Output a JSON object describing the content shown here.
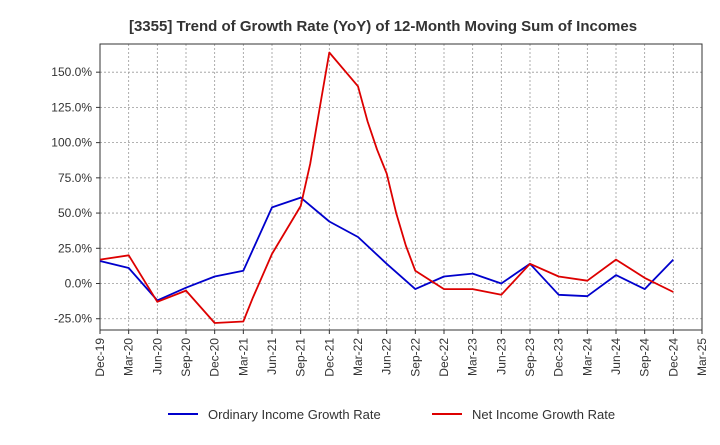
{
  "chart_data": {
    "type": "line",
    "title": "[3355]  Trend of Growth Rate (YoY) of 12-Month Moving Sum of Incomes",
    "xlabel": "",
    "ylabel": "",
    "y_unit": "%",
    "ylim": [
      -33,
      170
    ],
    "y_ticks": [
      -25,
      0,
      25,
      50,
      75,
      100,
      125,
      150
    ],
    "y_tick_labels": [
      "-25.0%",
      "0.0%",
      "25.0%",
      "50.0%",
      "75.0%",
      "100.0%",
      "125.0%",
      "150.0%"
    ],
    "x_tick_labels": [
      "Dec-19",
      "Mar-20",
      "Jun-20",
      "Sep-20",
      "Dec-20",
      "Mar-21",
      "Jun-21",
      "Sep-21",
      "Dec-21",
      "Mar-22",
      "Jun-22",
      "Sep-22",
      "Dec-22",
      "Mar-23",
      "Jun-23",
      "Sep-23",
      "Dec-23",
      "Mar-24",
      "Jun-24",
      "Sep-24",
      "Dec-24",
      "Mar-25"
    ],
    "x_start": "Dec-19",
    "x_end": "Mar-25",
    "x": [
      "Dec-19",
      "Jan-20",
      "Feb-20",
      "Mar-20",
      "Apr-20",
      "May-20",
      "Jun-20",
      "Jul-20",
      "Aug-20",
      "Sep-20",
      "Oct-20",
      "Nov-20",
      "Dec-20",
      "Jan-21",
      "Feb-21",
      "Mar-21",
      "Apr-21",
      "May-21",
      "Jun-21",
      "Jul-21",
      "Aug-21",
      "Sep-21",
      "Oct-21",
      "Nov-21",
      "Dec-21",
      "Jan-22",
      "Feb-22",
      "Mar-22",
      "Apr-22",
      "May-22",
      "Jun-22",
      "Jul-22",
      "Aug-22",
      "Sep-22",
      "Oct-22",
      "Nov-22",
      "Dec-22",
      "Jan-23",
      "Feb-23",
      "Mar-23",
      "Apr-23",
      "May-23",
      "Jun-23",
      "Jul-23",
      "Aug-23",
      "Sep-23",
      "Oct-23",
      "Nov-23",
      "Dec-23",
      "Jan-24",
      "Feb-24",
      "Mar-24",
      "Apr-24",
      "May-24",
      "Jun-24",
      "Jul-24",
      "Aug-24",
      "Sep-24",
      "Oct-24",
      "Nov-24",
      "Dec-24"
    ],
    "grid": true,
    "legend_position": "bottom",
    "series": [
      {
        "name": "Ordinary Income Growth Rate",
        "color": "#0000cc",
        "points": [
          [
            "Dec-19",
            16
          ],
          [
            "Mar-20",
            11
          ],
          [
            "Jun-20",
            -12
          ],
          [
            "Sep-20",
            -3
          ],
          [
            "Dec-20",
            5
          ],
          [
            "Mar-21",
            9
          ],
          [
            "Jun-21",
            54
          ],
          [
            "Sep-21",
            61
          ],
          [
            "Dec-21",
            44
          ],
          [
            "Mar-22",
            33
          ],
          [
            "Jun-22",
            14
          ],
          [
            "Sep-22",
            -4
          ],
          [
            "Dec-22",
            5
          ],
          [
            "Mar-23",
            7
          ],
          [
            "Jun-23",
            0
          ],
          [
            "Sep-23",
            14
          ],
          [
            "Dec-23",
            -8
          ],
          [
            "Mar-24",
            -9
          ],
          [
            "Jun-24",
            6
          ],
          [
            "Sep-24",
            -4
          ],
          [
            "Dec-24",
            17
          ]
        ]
      },
      {
        "name": "Net Income Growth Rate",
        "color": "#dd0000",
        "points": [
          [
            "Dec-19",
            17
          ],
          [
            "Mar-20",
            20
          ],
          [
            "Jun-20",
            -13
          ],
          [
            "Sep-20",
            -5
          ],
          [
            "Dec-20",
            -28
          ],
          [
            "Mar-21",
            -27
          ],
          [
            "Apr-21",
            -10
          ],
          [
            "Jun-21",
            21
          ],
          [
            "Sep-21",
            55
          ],
          [
            "Oct-21",
            85
          ],
          [
            "Nov-21",
            125
          ],
          [
            "Dec-21",
            164
          ],
          [
            "Mar-22",
            140
          ],
          [
            "Apr-22",
            115
          ],
          [
            "May-22",
            95
          ],
          [
            "Jun-22",
            78
          ],
          [
            "Jul-22",
            50
          ],
          [
            "Aug-22",
            27
          ],
          [
            "Sep-22",
            9
          ],
          [
            "Dec-22",
            -4
          ],
          [
            "Mar-23",
            -4
          ],
          [
            "Jun-23",
            -8
          ],
          [
            "Sep-23",
            14
          ],
          [
            "Dec-23",
            5
          ],
          [
            "Mar-24",
            2
          ],
          [
            "Jun-24",
            17
          ],
          [
            "Sep-24",
            4
          ],
          [
            "Dec-24",
            -6
          ]
        ]
      }
    ]
  }
}
